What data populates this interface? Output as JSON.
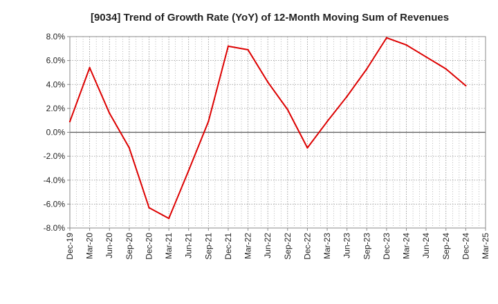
{
  "chart_data": {
    "type": "line",
    "title": "[9034]  Trend of Growth Rate (YoY) of 12-Month Moving Sum of Revenues",
    "xlabel": "",
    "ylabel": "",
    "x": [
      "Dec-19",
      "Mar-20",
      "Jun-20",
      "Sep-20",
      "Dec-20",
      "Mar-21",
      "Jun-21",
      "Sep-21",
      "Dec-21",
      "Mar-22",
      "Jun-22",
      "Sep-22",
      "Dec-22",
      "Mar-23",
      "Jun-23",
      "Sep-23",
      "Dec-23",
      "Mar-24",
      "Jun-24",
      "Sep-24",
      "Dec-24",
      "Mar-25"
    ],
    "series": [
      {
        "values": [
          0.9,
          5.4,
          1.6,
          -1.3,
          -6.3,
          -7.2,
          -3.2,
          0.9,
          7.2,
          6.9,
          4.2,
          1.9,
          -1.3,
          0.9,
          3.0,
          5.3,
          7.9,
          7.3,
          6.3,
          5.3,
          3.9,
          null
        ]
      }
    ],
    "ylim": [
      -8,
      8
    ],
    "yticks": [
      8,
      6,
      4,
      2,
      0,
      -2,
      -4,
      -6,
      -8
    ],
    "ytick_labels": [
      "8.0%",
      "6.0%",
      "4.0%",
      "2.0%",
      "0.0%",
      "-2.0%",
      "-4.0%",
      "-6.0%",
      "-8.0%"
    ],
    "grid": true,
    "colors": {
      "line": "#dd0000",
      "grid": "#888888",
      "zero": "#555555",
      "axis": "#888888"
    }
  }
}
